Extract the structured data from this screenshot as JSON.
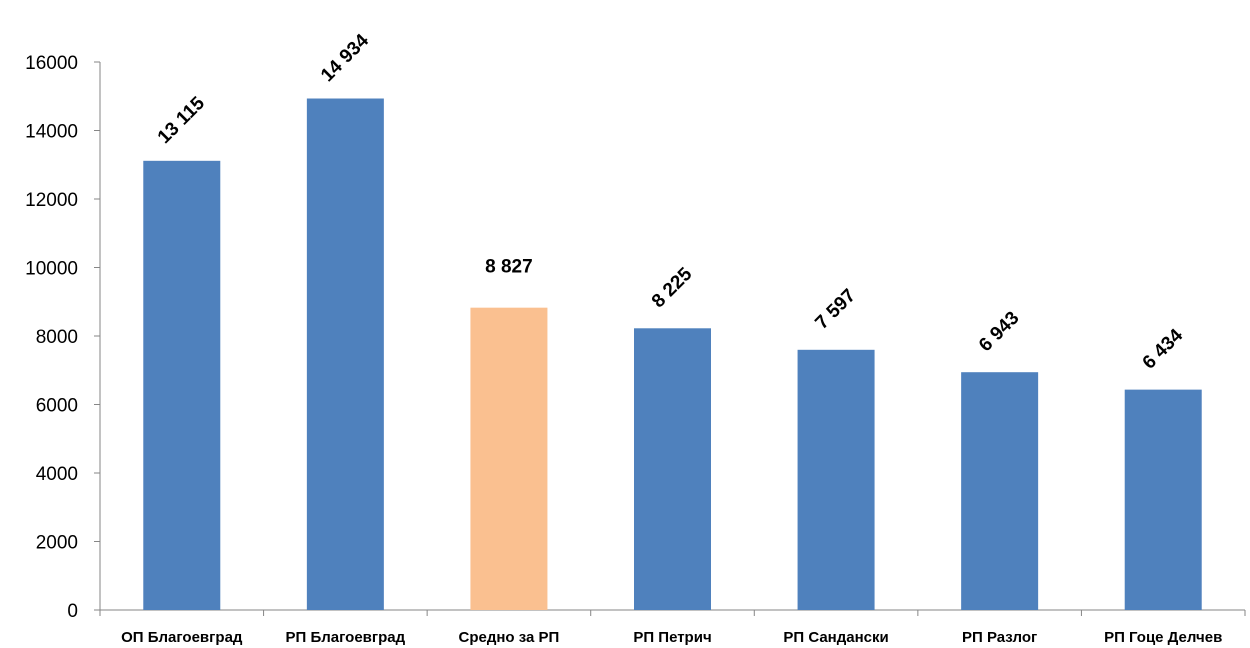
{
  "chart_data": {
    "type": "bar",
    "categories": [
      "ОП Благоевград",
      "РП Благоевград",
      "Средно за РП",
      "РП Петрич",
      "РП Сандански",
      "РП Разлог",
      "РП Гоце Делчев"
    ],
    "values": [
      13115,
      14934,
      8827,
      8225,
      7597,
      6943,
      6434
    ],
    "data_labels": [
      "13 115",
      "14 934",
      "8 827",
      "8 225",
      "7 597",
      "6 943",
      "6 434"
    ],
    "y_ticks": [
      "0",
      "2000",
      "4000",
      "6000",
      "8000",
      "10000",
      "12000",
      "14000",
      "16000"
    ],
    "ylim": [
      0,
      16000
    ],
    "grid": false,
    "legend": "none",
    "colors": {
      "bar": "#4f81bd",
      "highlight": "#fac090",
      "highlight_index": 2,
      "axis": "#868686"
    }
  }
}
